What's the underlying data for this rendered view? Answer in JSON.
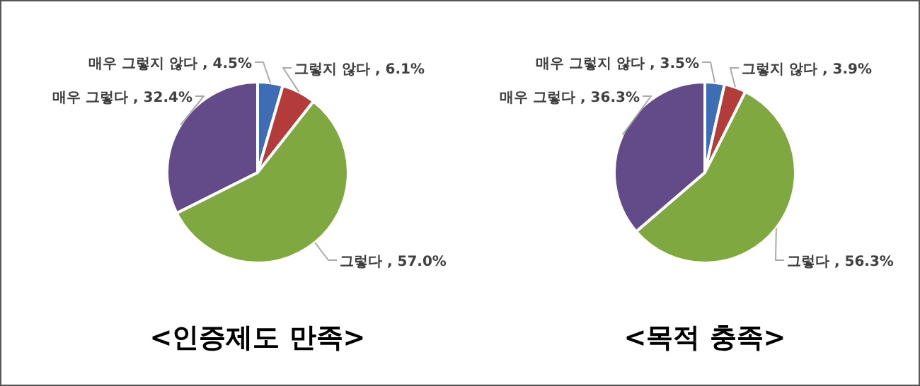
{
  "chart_data": [
    {
      "type": "pie",
      "title": "<인증제도 만족>",
      "categories": [
        "매우 그렇지 않다",
        "그렇지 않다",
        "그렇다",
        "매우 그렇다"
      ],
      "values": [
        4.5,
        6.1,
        57.0,
        32.4
      ],
      "colors": [
        "#3e6db5",
        "#b33c3a",
        "#80a840",
        "#634a88"
      ],
      "value_labels": [
        "4.5%",
        "6.1%",
        "57.0%",
        "32.4%"
      ]
    },
    {
      "type": "pie",
      "title": "<목적 충족>",
      "categories": [
        "매우 그렇지 않다",
        "그렇지 않다",
        "그렇다",
        "매우 그렇다"
      ],
      "values": [
        3.5,
        3.9,
        56.3,
        36.3
      ],
      "colors": [
        "#3e6db5",
        "#b33c3a",
        "#80a840",
        "#634a88"
      ],
      "value_labels": [
        "3.5%",
        "3.9%",
        "56.3%",
        "36.3%"
      ]
    }
  ]
}
